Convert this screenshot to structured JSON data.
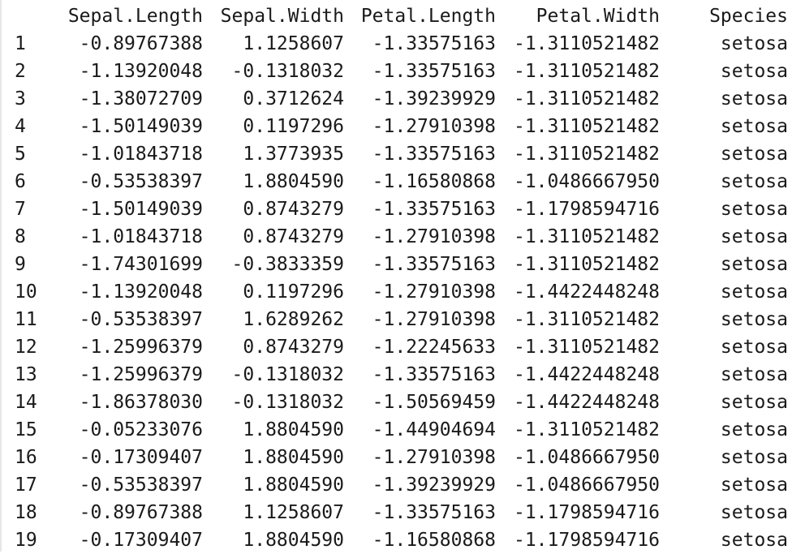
{
  "table": {
    "columns": [
      "",
      "Sepal.Length",
      "Sepal.Width",
      "Petal.Length",
      "Petal.Width",
      "Species"
    ],
    "rows": [
      [
        "1",
        "-0.89767388",
        "1.1258607",
        "-1.33575163",
        "-1.3110521482",
        "setosa"
      ],
      [
        "2",
        "-1.13920048",
        "-0.1318032",
        "-1.33575163",
        "-1.3110521482",
        "setosa"
      ],
      [
        "3",
        "-1.38072709",
        "0.3712624",
        "-1.39239929",
        "-1.3110521482",
        "setosa"
      ],
      [
        "4",
        "-1.50149039",
        "0.1197296",
        "-1.27910398",
        "-1.3110521482",
        "setosa"
      ],
      [
        "5",
        "-1.01843718",
        "1.3773935",
        "-1.33575163",
        "-1.3110521482",
        "setosa"
      ],
      [
        "6",
        "-0.53538397",
        "1.8804590",
        "-1.16580868",
        "-1.0486667950",
        "setosa"
      ],
      [
        "7",
        "-1.50149039",
        "0.8743279",
        "-1.33575163",
        "-1.1798594716",
        "setosa"
      ],
      [
        "8",
        "-1.01843718",
        "0.8743279",
        "-1.27910398",
        "-1.3110521482",
        "setosa"
      ],
      [
        "9",
        "-1.74301699",
        "-0.3833359",
        "-1.33575163",
        "-1.3110521482",
        "setosa"
      ],
      [
        "10",
        "-1.13920048",
        "0.1197296",
        "-1.27910398",
        "-1.4422448248",
        "setosa"
      ],
      [
        "11",
        "-0.53538397",
        "1.6289262",
        "-1.27910398",
        "-1.3110521482",
        "setosa"
      ],
      [
        "12",
        "-1.25996379",
        "0.8743279",
        "-1.22245633",
        "-1.3110521482",
        "setosa"
      ],
      [
        "13",
        "-1.25996379",
        "-0.1318032",
        "-1.33575163",
        "-1.4422448248",
        "setosa"
      ],
      [
        "14",
        "-1.86378030",
        "-0.1318032",
        "-1.50569459",
        "-1.4422448248",
        "setosa"
      ],
      [
        "15",
        "-0.05233076",
        "1.8804590",
        "-1.44904694",
        "-1.3110521482",
        "setosa"
      ],
      [
        "16",
        "-0.17309407",
        "1.8804590",
        "-1.27910398",
        "-1.0486667950",
        "setosa"
      ],
      [
        "17",
        "-0.53538397",
        "1.8804590",
        "-1.39239929",
        "-1.0486667950",
        "setosa"
      ],
      [
        "18",
        "-0.89767388",
        "1.1258607",
        "-1.33575163",
        "-1.1798594716",
        "setosa"
      ],
      [
        "19",
        "-0.17309407",
        "1.8804590",
        "-1.16580868",
        "-1.1798594716",
        "setosa"
      ]
    ]
  }
}
